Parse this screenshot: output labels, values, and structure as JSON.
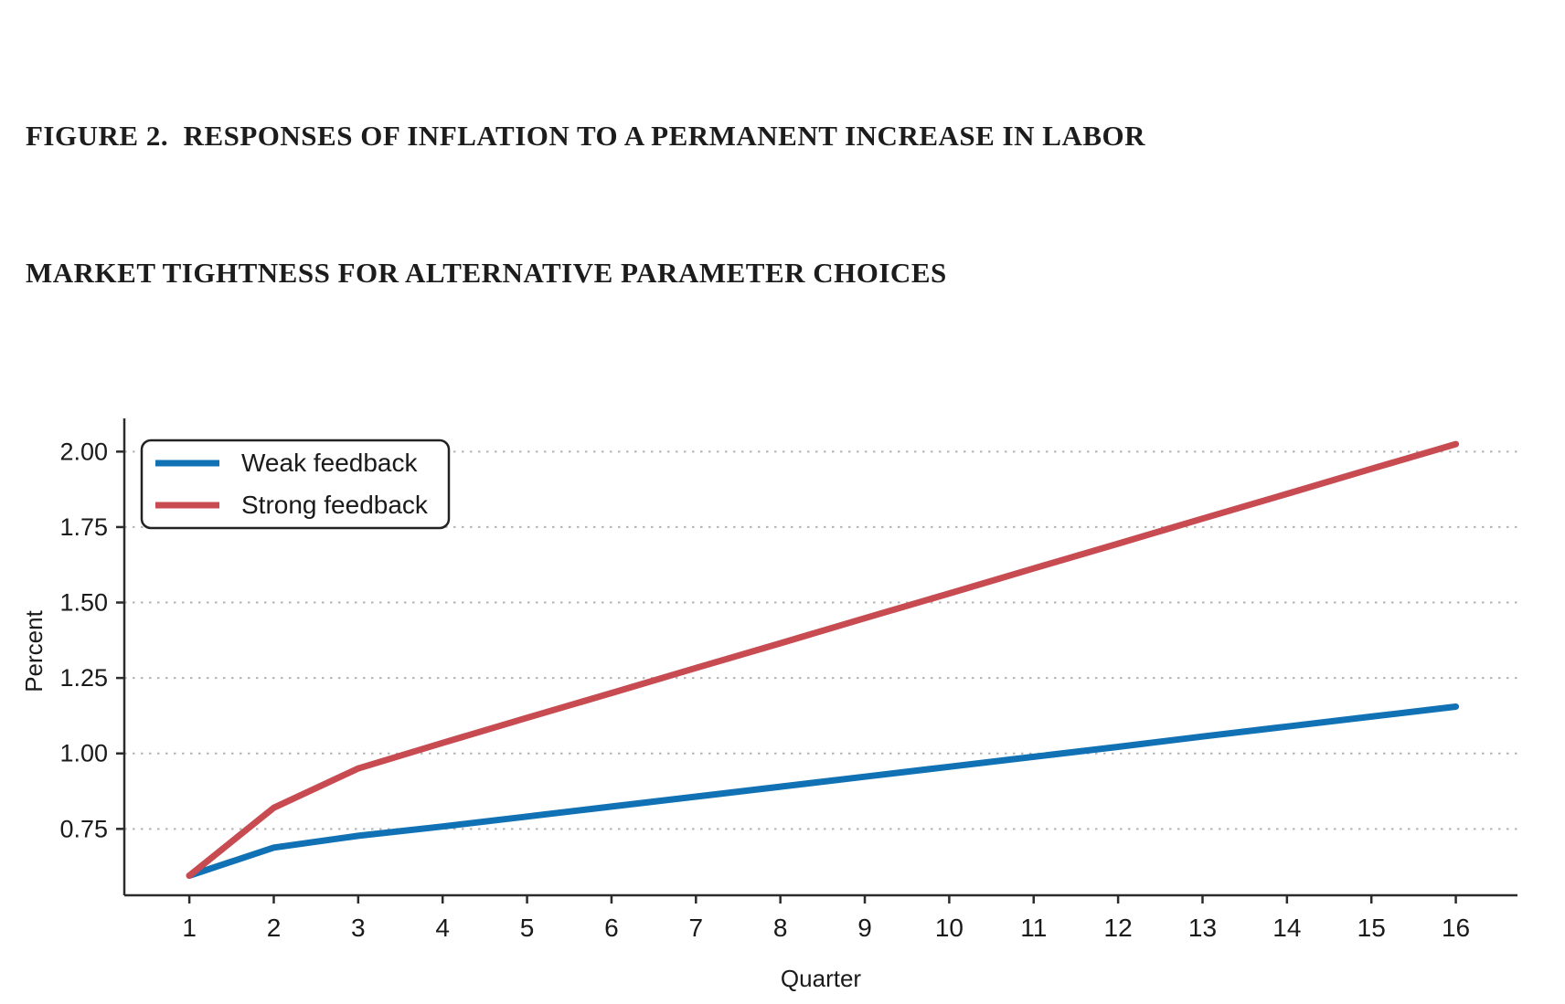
{
  "title": {
    "line1": "FIGURE 2.  RESPONSES OF INFLATION TO A PERMANENT INCREASE IN LABOR",
    "line2": "MARKET TIGHTNESS FOR ALTERNATIVE PARAMETER CHOICES"
  },
  "colors": {
    "weak_feedback": "#1171b5",
    "strong_feedback": "#c74b50",
    "grid": "#b3b3b3",
    "axis": "#2b2b2b",
    "text": "#1a1a1a",
    "legend_border": "#222222",
    "background": "#ffffff"
  },
  "chart_data": {
    "type": "line",
    "title": "",
    "xlabel": "Quarter",
    "ylabel": "Percent",
    "x": [
      1,
      2,
      3,
      4,
      5,
      6,
      7,
      8,
      9,
      10,
      11,
      12,
      13,
      14,
      15,
      16
    ],
    "series": [
      {
        "name": "Weak feedback",
        "color_key": "weak_feedback",
        "values": [
          0.595,
          0.688,
          0.727,
          0.758,
          0.791,
          0.824,
          0.857,
          0.89,
          0.923,
          0.956,
          0.989,
          1.022,
          1.056,
          1.089,
          1.122,
          1.155
        ]
      },
      {
        "name": "Strong feedback",
        "color_key": "strong_feedback",
        "values": [
          0.595,
          0.82,
          0.95,
          1.035,
          1.118,
          1.2,
          1.283,
          1.365,
          1.448,
          1.53,
          1.613,
          1.695,
          1.778,
          1.86,
          1.943,
          2.025
        ]
      }
    ],
    "xticks": [
      1,
      2,
      3,
      4,
      5,
      6,
      7,
      8,
      9,
      10,
      11,
      12,
      13,
      14,
      15,
      16
    ],
    "xtick_labels": [
      "1",
      "2",
      "3",
      "4",
      "5",
      "6",
      "7",
      "8",
      "9",
      "10",
      "11",
      "12",
      "13",
      "14",
      "15",
      "16"
    ],
    "yticks": [
      0.75,
      1.0,
      1.25,
      1.5,
      1.75,
      2.0
    ],
    "ytick_labels": [
      "0.75",
      "1.00",
      "1.25",
      "1.50",
      "1.75",
      "2.00"
    ],
    "xlim": [
      0.23,
      16.73
    ],
    "ylim": [
      0.53,
      2.11
    ],
    "grid": "horizontal-dotted",
    "legend_position": "upper-left",
    "spines": [
      "left",
      "bottom"
    ]
  }
}
